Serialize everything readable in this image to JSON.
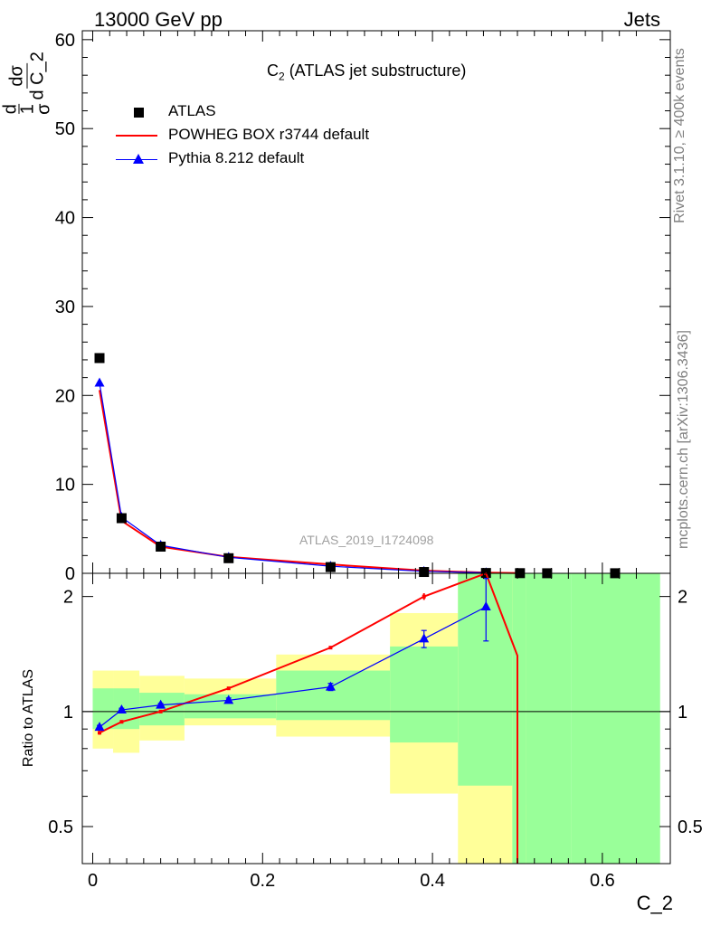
{
  "header": {
    "left": "13000 GeV pp",
    "right": "Jets"
  },
  "side_labels": {
    "rivet": "Rivet 3.1.10, ≥ 400k events",
    "mcplots": "mcplots.cern.ch [arXiv:1306.3436]"
  },
  "watermark": "ATLAS_2019_I1724098",
  "chart_data": [
    {
      "type": "scatter",
      "title": "C2 (ATLAS jet substructure)",
      "title_main": "C",
      "title_sub": "2",
      "title_rest": " (ATLAS jet substructure)",
      "ylabel": "d1/σ dσ/d C_2",
      "ylim": [
        0,
        61
      ],
      "yticks": [
        0,
        10,
        20,
        30,
        40,
        50,
        60
      ],
      "xlim": [
        -0.012,
        0.68
      ],
      "grid": false,
      "legend_position": "top-left",
      "series": [
        {
          "name": "ATLAS",
          "color": "#000000",
          "marker": "square",
          "x": [
            0.008,
            0.034,
            0.08,
            0.16,
            0.28,
            0.39,
            0.463,
            0.503,
            0.535,
            0.615
          ],
          "values": [
            24.2,
            6.2,
            3.0,
            1.7,
            0.7,
            0.15,
            0.04,
            0.02,
            0.01,
            0.01
          ]
        },
        {
          "name": "POWHEG BOX r3744 default",
          "color": "#ff0000",
          "marker": "line",
          "x": [
            0.008,
            0.034,
            0.08,
            0.16,
            0.28,
            0.39,
            0.463,
            0.503
          ],
          "values": [
            20.6,
            5.9,
            3.0,
            1.85,
            1.0,
            0.3,
            0.08,
            0.03
          ]
        },
        {
          "name": "Pythia 8.212 default",
          "color": "#0000ff",
          "marker": "triangle",
          "x": [
            0.008,
            0.034,
            0.08,
            0.16,
            0.28,
            0.39,
            0.463
          ],
          "values": [
            21.4,
            6.3,
            3.15,
            1.8,
            0.8,
            0.22,
            0.07
          ]
        }
      ]
    },
    {
      "type": "scatter",
      "ylabel": "Ratio to ATLAS",
      "xlabel": "C_2",
      "ylim": [
        0.4,
        2.3
      ],
      "y_scale": "log",
      "yticks": [
        0.5,
        1,
        2
      ],
      "xlim": [
        -0.012,
        0.68
      ],
      "xticks": [
        0,
        0.2,
        0.4,
        0.6
      ],
      "bands": [
        {
          "x0": 0.0,
          "x1": 0.024,
          "yellow": [
            0.8,
            1.28
          ],
          "green": [
            0.9,
            1.15
          ]
        },
        {
          "x0": 0.024,
          "x1": 0.055,
          "yellow": [
            0.78,
            1.28
          ],
          "green": [
            0.9,
            1.15
          ]
        },
        {
          "x0": 0.055,
          "x1": 0.108,
          "yellow": [
            0.84,
            1.24
          ],
          "green": [
            0.92,
            1.12
          ]
        },
        {
          "x0": 0.108,
          "x1": 0.216,
          "yellow": [
            0.92,
            1.22
          ],
          "green": [
            0.96,
            1.11
          ]
        },
        {
          "x0": 0.216,
          "x1": 0.35,
          "yellow": [
            0.86,
            1.41
          ],
          "green": [
            0.95,
            1.28
          ]
        },
        {
          "x0": 0.35,
          "x1": 0.43,
          "yellow": [
            0.61,
            1.81
          ],
          "green": [
            0.83,
            1.48
          ]
        },
        {
          "x0": 0.43,
          "x1": 0.494,
          "yellow": [
            0.4,
            2.3
          ],
          "green": [
            0.64,
            2.3
          ]
        },
        {
          "x0": 0.494,
          "x1": 0.51,
          "yellow": [
            0.4,
            2.3
          ],
          "green": [
            0.4,
            2.3
          ]
        },
        {
          "x0": 0.51,
          "x1": 0.563,
          "yellow": [
            0.4,
            0.57
          ],
          "green": [
            0.4,
            2.3
          ]
        },
        {
          "x0": 0.563,
          "x1": 0.668,
          "yellow": null,
          "green": [
            0.4,
            2.3
          ]
        }
      ],
      "series": [
        {
          "name": "POWHEG BOX r3744 default",
          "color": "#ff0000",
          "x": [
            0.008,
            0.034,
            0.08,
            0.16,
            0.28,
            0.39,
            0.463,
            0.5,
            0.5
          ],
          "values": [
            0.88,
            0.94,
            1.0,
            1.15,
            1.47,
            2.0,
            2.3,
            1.4,
            0.4
          ],
          "errors": [
            0.01,
            0.005,
            0.005,
            0.005,
            0.01,
            0.04,
            0,
            0,
            0
          ]
        },
        {
          "name": "Pythia 8.212 default",
          "color": "#0000ff",
          "x": [
            0.008,
            0.034,
            0.08,
            0.16,
            0.28,
            0.39,
            0.463
          ],
          "values": [
            0.91,
            1.01,
            1.04,
            1.07,
            1.16,
            1.55,
            1.88
          ],
          "errors": [
            0.01,
            0.01,
            0.01,
            0.015,
            0.025,
            0.08,
            0.35
          ]
        }
      ]
    }
  ]
}
